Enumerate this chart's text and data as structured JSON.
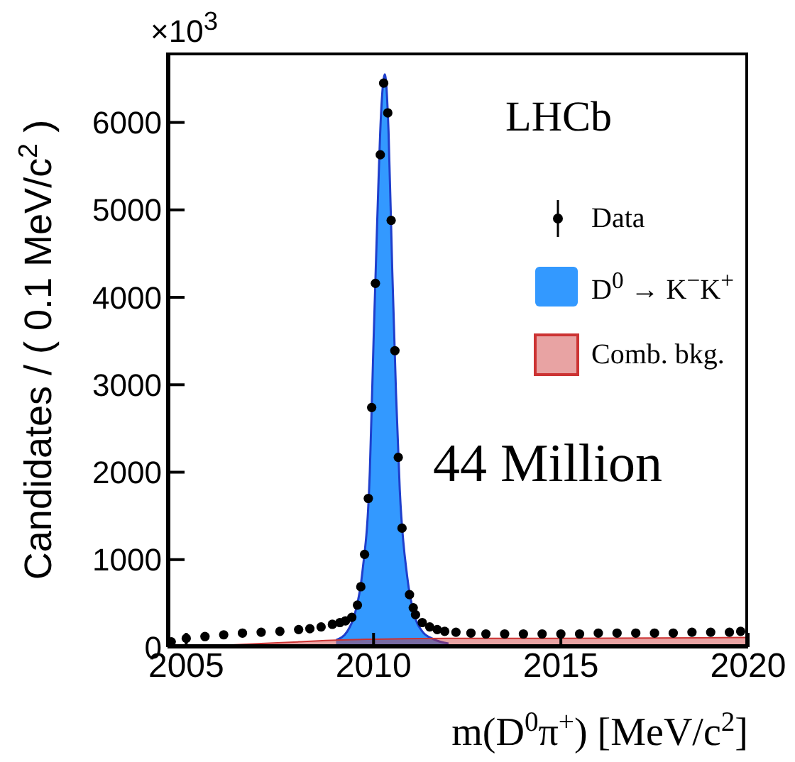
{
  "chart_data": {
    "type": "scatter",
    "xlabel": "m(D$^{0}$π$^{+}$) [MeV/c$^{2}$]",
    "ylabel": "Candidates / ( 0.1 MeV/c$^{2}$ )",
    "annotations": [
      "×10$^{3}$",
      "LHCb",
      "44 Million"
    ],
    "xlim": [
      2004.5,
      2020
    ],
    "xticks": [
      2005,
      2010,
      2015,
      2020
    ],
    "ylim": [
      0,
      6800
    ],
    "yticks": [
      0,
      1000,
      2000,
      3000,
      4000,
      5000,
      6000
    ],
    "legend": "top right",
    "series": [
      {
        "name": "D$^{0}$ → K$^{−}$K$^{+}$",
        "type": "area",
        "color": "#3399ff",
        "x": [
          2009.0,
          2009.3,
          2009.5,
          2009.7,
          2009.9,
          2010.0,
          2010.1,
          2010.2,
          2010.3,
          2010.4,
          2010.5,
          2010.6,
          2010.7,
          2010.9,
          2011.1,
          2011.3,
          2011.6,
          2012.0
        ],
        "values": [
          80,
          180,
          380,
          850,
          2000,
          3500,
          4900,
          6100,
          6550,
          5900,
          4300,
          2900,
          1800,
          800,
          350,
          180,
          90,
          40
        ]
      },
      {
        "name": "Comb. bkg.",
        "type": "area",
        "color": "#cc3333",
        "x": [
          2004.6,
          2006,
          2007,
          2008,
          2009,
          2010,
          2012,
          2015,
          2020
        ],
        "values": [
          0,
          20,
          40,
          60,
          80,
          90,
          100,
          100,
          110
        ]
      },
      {
        "name": "Data",
        "color": "#000000",
        "x": [
          2004.6,
          2005,
          2005.5,
          2006,
          2006.5,
          2007,
          2007.5,
          2008,
          2008.3,
          2008.6,
          2008.9,
          2009.1,
          2009.25,
          2009.42,
          2009.57,
          2009.66,
          2009.76,
          2009.86,
          2009.95,
          2010.05,
          2010.18,
          2010.27,
          2010.38,
          2010.47,
          2010.57,
          2010.66,
          2010.76,
          2010.96,
          2011.06,
          2011.12,
          2011.3,
          2011.5,
          2011.7,
          2011.9,
          2012.2,
          2012.6,
          2013,
          2013.5,
          2014,
          2014.5,
          2015,
          2015.5,
          2016,
          2016.5,
          2017,
          2017.5,
          2018,
          2018.5,
          2019,
          2019.5,
          2019.8
        ],
        "values": [
          60,
          100,
          120,
          140,
          160,
          170,
          180,
          200,
          210,
          230,
          260,
          280,
          300,
          340,
          480,
          690,
          1060,
          1700,
          2740,
          4160,
          5630,
          6450,
          6110,
          4880,
          3390,
          2170,
          1360,
          600,
          450,
          370,
          280,
          230,
          200,
          180,
          170,
          160,
          150,
          150,
          150,
          150,
          150,
          150,
          160,
          160,
          160,
          160,
          160,
          170,
          170,
          170,
          180
        ]
      }
    ]
  }
}
